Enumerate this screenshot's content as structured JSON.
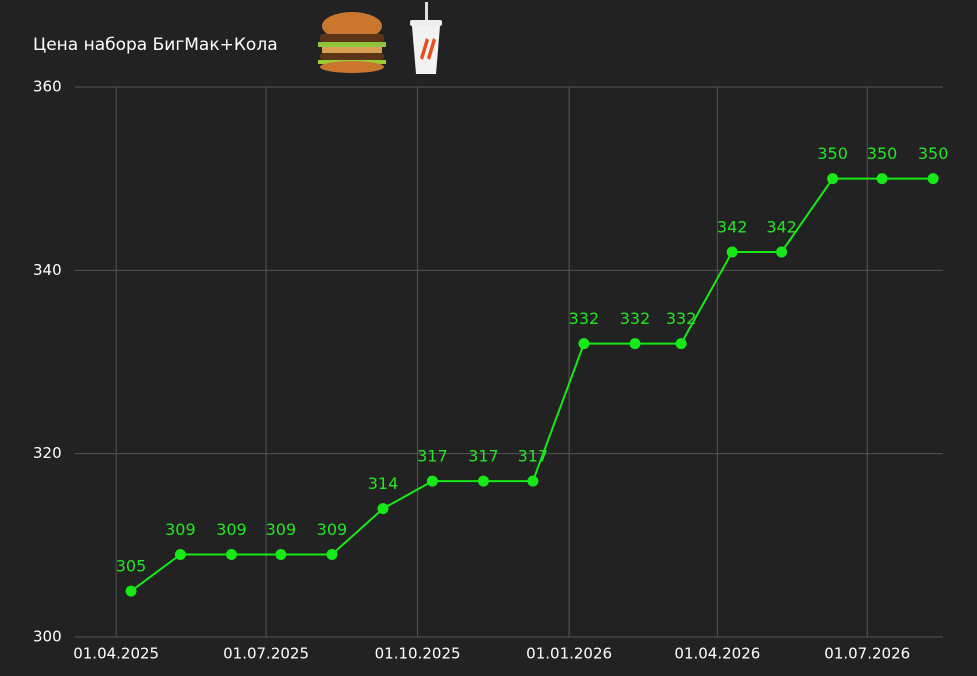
{
  "chart_data": {
    "type": "line",
    "title": "Цена набора БигМак+Кола",
    "x": [
      "2025-04-10",
      "2025-05-10",
      "2025-06-10",
      "2025-07-10",
      "2025-08-10",
      "2025-09-10",
      "2025-10-10",
      "2025-11-10",
      "2025-12-10",
      "2026-01-10",
      "2026-02-10",
      "2026-03-10",
      "2026-04-10",
      "2026-05-10",
      "2026-06-10",
      "2026-07-10",
      "2026-08-10"
    ],
    "series": [
      {
        "name": "БигМак+Кола",
        "color": "#17e817",
        "values": [
          305,
          309,
          309,
          309,
          309,
          314,
          317,
          317,
          317,
          332,
          332,
          332,
          342,
          342,
          350,
          350,
          350
        ]
      }
    ],
    "xlim": [
      "2025-03-07",
      "2026-08-16"
    ],
    "xticks": [
      {
        "value": "2025-04-01",
        "label": "01.04.2025"
      },
      {
        "value": "2025-07-01",
        "label": "01.07.2025"
      },
      {
        "value": "2025-10-01",
        "label": "01.10.2025"
      },
      {
        "value": "2026-01-01",
        "label": "01.01.2026"
      },
      {
        "value": "2026-04-01",
        "label": "01.04.2026"
      },
      {
        "value": "2026-07-01",
        "label": "01.07.2026"
      }
    ],
    "ylim": [
      300,
      360
    ],
    "yticks": [
      300,
      320,
      340,
      360
    ],
    "grid": true
  }
}
